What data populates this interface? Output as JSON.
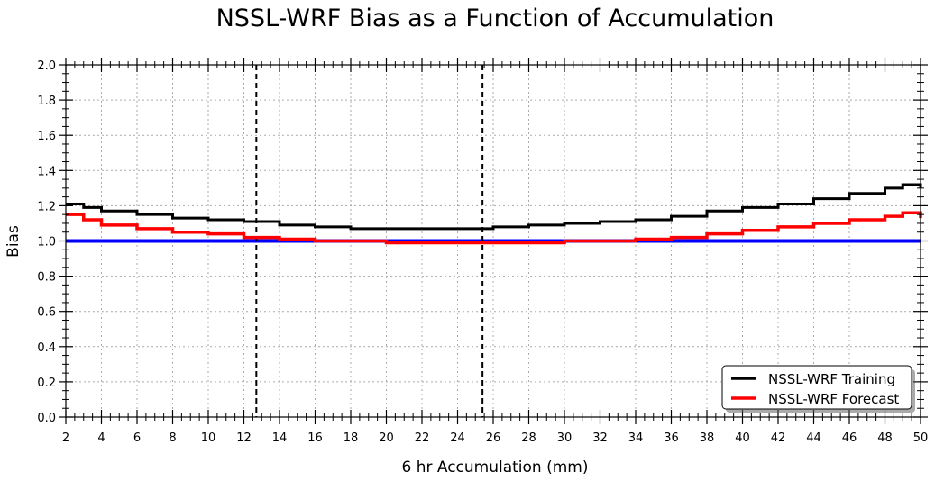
{
  "chart_data": {
    "type": "line",
    "title": "NSSL-WRF Bias as a Function of Accumulation",
    "xlabel": "6 hr Accumulation (mm)",
    "ylabel": "Bias",
    "xlim": [
      2,
      50
    ],
    "ylim": [
      0,
      2
    ],
    "x_ticks": [
      "2",
      "4",
      "6",
      "8",
      "10",
      "12",
      "14",
      "16",
      "18",
      "20",
      "22",
      "24",
      "26",
      "28",
      "30",
      "32",
      "34",
      "36",
      "38",
      "40",
      "42",
      "44",
      "46",
      "48",
      "50"
    ],
    "y_ticks": [
      "0.0",
      "0.2",
      "0.4",
      "0.6",
      "0.8",
      "1.0",
      "1.2",
      "1.4",
      "1.6",
      "1.8",
      "2.0"
    ],
    "grid": true,
    "legend_position": "lower-right",
    "reference_line": {
      "y": 1.0,
      "color": "#0000ff"
    },
    "vertical_lines": [
      12.7,
      25.4
    ],
    "x": [
      2,
      3,
      4,
      6,
      8,
      10,
      12,
      14,
      16,
      18,
      20,
      22,
      24,
      26,
      28,
      30,
      32,
      34,
      36,
      38,
      40,
      42,
      44,
      46,
      48,
      49,
      50
    ],
    "series": [
      {
        "name": "NSSL-WRF Training",
        "color": "#000000",
        "values": [
          1.21,
          1.19,
          1.17,
          1.15,
          1.13,
          1.12,
          1.11,
          1.09,
          1.08,
          1.07,
          1.07,
          1.07,
          1.07,
          1.08,
          1.09,
          1.1,
          1.11,
          1.12,
          1.14,
          1.17,
          1.19,
          1.21,
          1.24,
          1.27,
          1.3,
          1.32,
          1.3
        ]
      },
      {
        "name": "NSSL-WRF Forecast",
        "color": "#ff0000",
        "values": [
          1.15,
          1.12,
          1.09,
          1.07,
          1.05,
          1.04,
          1.02,
          1.01,
          1.0,
          1.0,
          0.99,
          0.99,
          0.99,
          0.99,
          0.99,
          1.0,
          1.0,
          1.01,
          1.02,
          1.04,
          1.06,
          1.08,
          1.1,
          1.12,
          1.14,
          1.16,
          1.13
        ]
      }
    ]
  }
}
